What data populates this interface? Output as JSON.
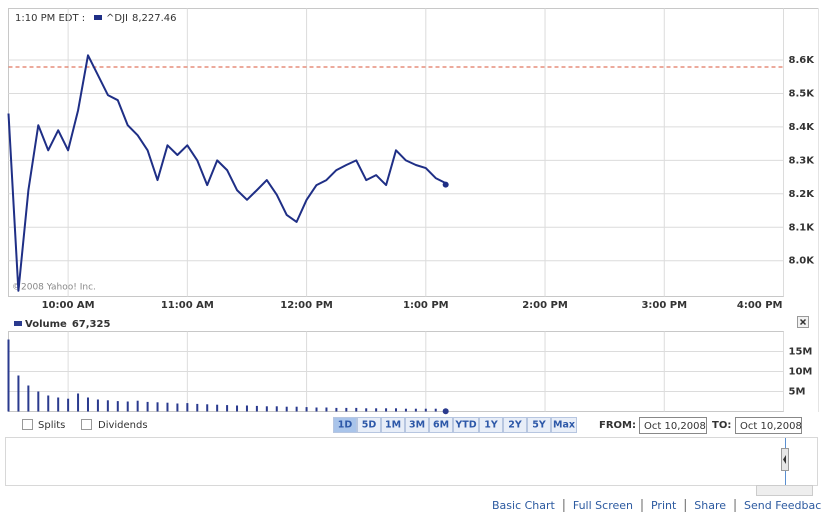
{
  "chart_data": [
    {
      "type": "line",
      "timestamp": "1:10 PM EDT :",
      "watermark": "©2008 Yahoo! Inc.",
      "quote": {
        "value": 8227.46,
        "label": "8,227.46"
      },
      "previous_close": 8579,
      "previous_close_color": "#d9563a",
      "x": [
        570,
        575,
        580,
        585,
        590,
        595,
        600,
        605,
        610,
        615,
        620,
        625,
        630,
        635,
        640,
        645,
        650,
        655,
        660,
        665,
        670,
        675,
        680,
        685,
        690,
        695,
        700,
        705,
        710,
        715,
        720,
        725,
        730,
        735,
        740,
        745,
        750,
        755,
        760,
        765,
        770,
        775,
        780,
        785,
        790
      ],
      "series": [
        {
          "name": "^DJI",
          "color": "#1f2f86",
          "values": [
            8440,
            7910,
            8211,
            8405,
            8330,
            8390,
            8330,
            8450,
            8614,
            8555,
            8495,
            8480,
            8405,
            8375,
            8330,
            8241,
            8345,
            8316,
            8345,
            8300,
            8226,
            8300,
            8271,
            8211,
            8182,
            8211,
            8241,
            8197,
            8137,
            8116,
            8182,
            8226,
            8241,
            8271,
            8286,
            8300,
            8241,
            8256,
            8226,
            8330,
            8300,
            8286,
            8277,
            8247,
            8232
          ]
        }
      ],
      "xlim": [
        570,
        960
      ],
      "xticks": [
        {
          "value": 600,
          "label": "10:00 AM"
        },
        {
          "value": 660,
          "label": "11:00 AM"
        },
        {
          "value": 720,
          "label": "12:00 PM"
        },
        {
          "value": 780,
          "label": "1:00 PM"
        },
        {
          "value": 840,
          "label": "2:00 PM"
        },
        {
          "value": 900,
          "label": "3:00 PM"
        },
        {
          "value": 960,
          "label": "4:00 PM"
        }
      ],
      "ylim": [
        7893,
        8754
      ],
      "yticks": [
        {
          "value": 8000,
          "label": "8.0K"
        },
        {
          "value": 8100,
          "label": "8.1K"
        },
        {
          "value": 8200,
          "label": "8.2K"
        },
        {
          "value": 8300,
          "label": "8.3K"
        },
        {
          "value": 8400,
          "label": "8.4K"
        },
        {
          "value": 8500,
          "label": "8.5K"
        },
        {
          "value": 8600,
          "label": "8.6K"
        }
      ],
      "grid": true
    },
    {
      "type": "bar",
      "quote": {
        "value": 67325,
        "label": "67,325"
      },
      "x": [
        570,
        575,
        580,
        585,
        590,
        595,
        600,
        605,
        610,
        615,
        620,
        625,
        630,
        635,
        640,
        645,
        650,
        655,
        660,
        665,
        670,
        675,
        680,
        685,
        690,
        695,
        700,
        705,
        710,
        715,
        720,
        725,
        730,
        735,
        740,
        745,
        750,
        755,
        760,
        765,
        770,
        775,
        780,
        785,
        790
      ],
      "series": [
        {
          "name": "Volume",
          "color": "#2a3a8e",
          "values": [
            18000000,
            9000000,
            6500000,
            5000000,
            4000000,
            3500000,
            3200000,
            4500000,
            3500000,
            3000000,
            2800000,
            2600000,
            2500000,
            2700000,
            2400000,
            2300000,
            2200000,
            2000000,
            2100000,
            1900000,
            1800000,
            1700000,
            1600000,
            1500000,
            1500000,
            1400000,
            1300000,
            1300000,
            1200000,
            1200000,
            1100000,
            1000000,
            1000000,
            900000,
            900000,
            900000,
            800000,
            800000,
            800000,
            800000,
            700000,
            700000,
            700000,
            700000,
            600000
          ]
        }
      ],
      "xlim": [
        570,
        960
      ],
      "ylim": [
        0,
        20000000
      ],
      "yticks": [
        {
          "value": 5000000,
          "label": "5M"
        },
        {
          "value": 10000000,
          "label": "10M"
        },
        {
          "value": 15000000,
          "label": "15M"
        }
      ],
      "grid": true
    }
  ],
  "controls": {
    "checkboxes": [
      "Splits",
      "Dividends"
    ],
    "ranges": [
      "1D",
      "5D",
      "1M",
      "3M",
      "6M",
      "YTD",
      "1Y",
      "2Y",
      "5Y",
      "Max"
    ],
    "active_range": 0,
    "from_label": "FROM:",
    "from_date": "Oct 10,2008",
    "to_label": "TO:",
    "to_date": "Oct 10,2008"
  },
  "footer_links": [
    "Basic Chart",
    "Full Screen",
    "Print",
    "Share",
    "Send Feedback"
  ]
}
